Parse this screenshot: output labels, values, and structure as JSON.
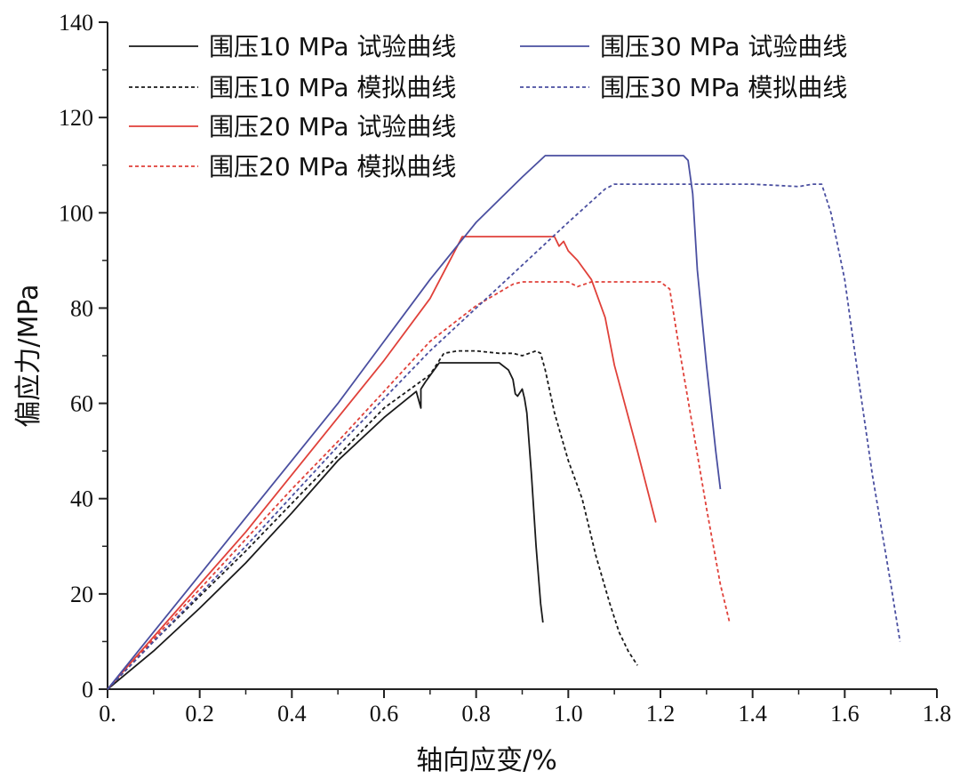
{
  "chart_data": {
    "type": "line",
    "title": "",
    "xlabel": "轴向应变/%",
    "ylabel": "偏应力/MPa",
    "xlim": [
      0,
      1.8
    ],
    "ylim": [
      0,
      140
    ],
    "x_ticks": [
      "0.",
      "0.2",
      "0.4",
      "0.6",
      "0.8",
      "1.0",
      "1.2",
      "1.4",
      "1.6",
      "1.8"
    ],
    "y_ticks": [
      "0",
      "20",
      "40",
      "60",
      "80",
      "100",
      "120",
      "140"
    ],
    "legend_position": "top",
    "series": [
      {
        "name": "围压10 MPa 试验曲线",
        "color": "#1a1a1a",
        "style": "solid",
        "x": [
          0,
          0.1,
          0.2,
          0.3,
          0.4,
          0.5,
          0.6,
          0.67,
          0.68,
          0.68,
          0.69,
          0.72,
          0.74,
          0.8,
          0.85,
          0.87,
          0.88,
          0.885,
          0.89,
          0.9,
          0.905,
          0.91,
          0.92,
          0.93,
          0.94,
          0.945
        ],
        "y": [
          0,
          8,
          17,
          26.5,
          37,
          48,
          57,
          62.5,
          59,
          63,
          64.5,
          68.5,
          68.5,
          68.5,
          68.5,
          67,
          65,
          62,
          61.5,
          63,
          61,
          58,
          45,
          30,
          18,
          14
        ]
      },
      {
        "name": "围压10 MPa 模拟曲线",
        "color": "#1a1a1a",
        "style": "dashed",
        "x": [
          0,
          0.1,
          0.2,
          0.3,
          0.4,
          0.5,
          0.6,
          0.7,
          0.73,
          0.76,
          0.8,
          0.85,
          0.88,
          0.9,
          0.93,
          0.94,
          0.95,
          0.97,
          1.0,
          1.03,
          1.06,
          1.09,
          1.11,
          1.13,
          1.15
        ],
        "y": [
          0,
          10,
          19.5,
          29,
          39,
          49,
          59,
          66,
          70.5,
          71,
          71,
          70.5,
          70.5,
          70,
          71,
          70.5,
          67,
          58,
          48,
          40,
          28,
          18,
          12,
          8,
          5
        ]
      },
      {
        "name": "围压20 MPa 试验曲线",
        "color": "#e0413a",
        "style": "solid",
        "x": [
          0,
          0.1,
          0.2,
          0.3,
          0.4,
          0.5,
          0.6,
          0.7,
          0.77,
          0.9,
          0.97,
          0.98,
          0.99,
          1.0,
          1.02,
          1.05,
          1.08,
          1.1,
          1.15,
          1.19
        ],
        "y": [
          0,
          11,
          22,
          33,
          45,
          57,
          69,
          82,
          95,
          95,
          95,
          93,
          94,
          92,
          90,
          86,
          78,
          68,
          50,
          35
        ]
      },
      {
        "name": "围压20 MPa 模拟曲线",
        "color": "#e0413a",
        "style": "dashed",
        "x": [
          0,
          0.1,
          0.2,
          0.3,
          0.4,
          0.5,
          0.6,
          0.7,
          0.8,
          0.88,
          0.9,
          0.95,
          1.0,
          1.02,
          1.05,
          1.1,
          1.15,
          1.2,
          1.22,
          1.24,
          1.27,
          1.3,
          1.33,
          1.35
        ],
        "y": [
          0,
          10.5,
          21,
          31.5,
          42,
          52,
          62.5,
          73,
          80.5,
          85,
          85.5,
          85.5,
          85.5,
          84.5,
          85.5,
          85.5,
          85.5,
          85.5,
          84,
          72,
          55,
          38,
          22,
          14
        ]
      },
      {
        "name": "围压30 MPa 试验曲线",
        "color": "#4a4fa0",
        "style": "solid",
        "x": [
          0,
          0.1,
          0.2,
          0.3,
          0.4,
          0.5,
          0.6,
          0.7,
          0.8,
          0.9,
          0.95,
          1.1,
          1.25,
          1.26,
          1.27,
          1.28,
          1.3,
          1.32,
          1.33
        ],
        "y": [
          0,
          12,
          24,
          36,
          48,
          60,
          73,
          86,
          98,
          107.5,
          112,
          112,
          112,
          111,
          104,
          88,
          68,
          50,
          42
        ]
      },
      {
        "name": "围压30 MPa 模拟曲线",
        "color": "#4a4fa0",
        "style": "dashed",
        "x": [
          0,
          0.1,
          0.2,
          0.3,
          0.4,
          0.5,
          0.6,
          0.7,
          0.8,
          0.9,
          1.0,
          1.08,
          1.1,
          1.2,
          1.3,
          1.4,
          1.5,
          1.53,
          1.55,
          1.57,
          1.6,
          1.63,
          1.66,
          1.7,
          1.72
        ],
        "y": [
          0,
          10,
          20,
          30,
          40.5,
          51,
          61,
          71,
          80,
          89,
          98,
          105,
          106,
          106,
          106,
          106,
          105.5,
          106,
          106,
          100,
          86,
          65,
          45,
          22,
          10
        ]
      }
    ]
  }
}
